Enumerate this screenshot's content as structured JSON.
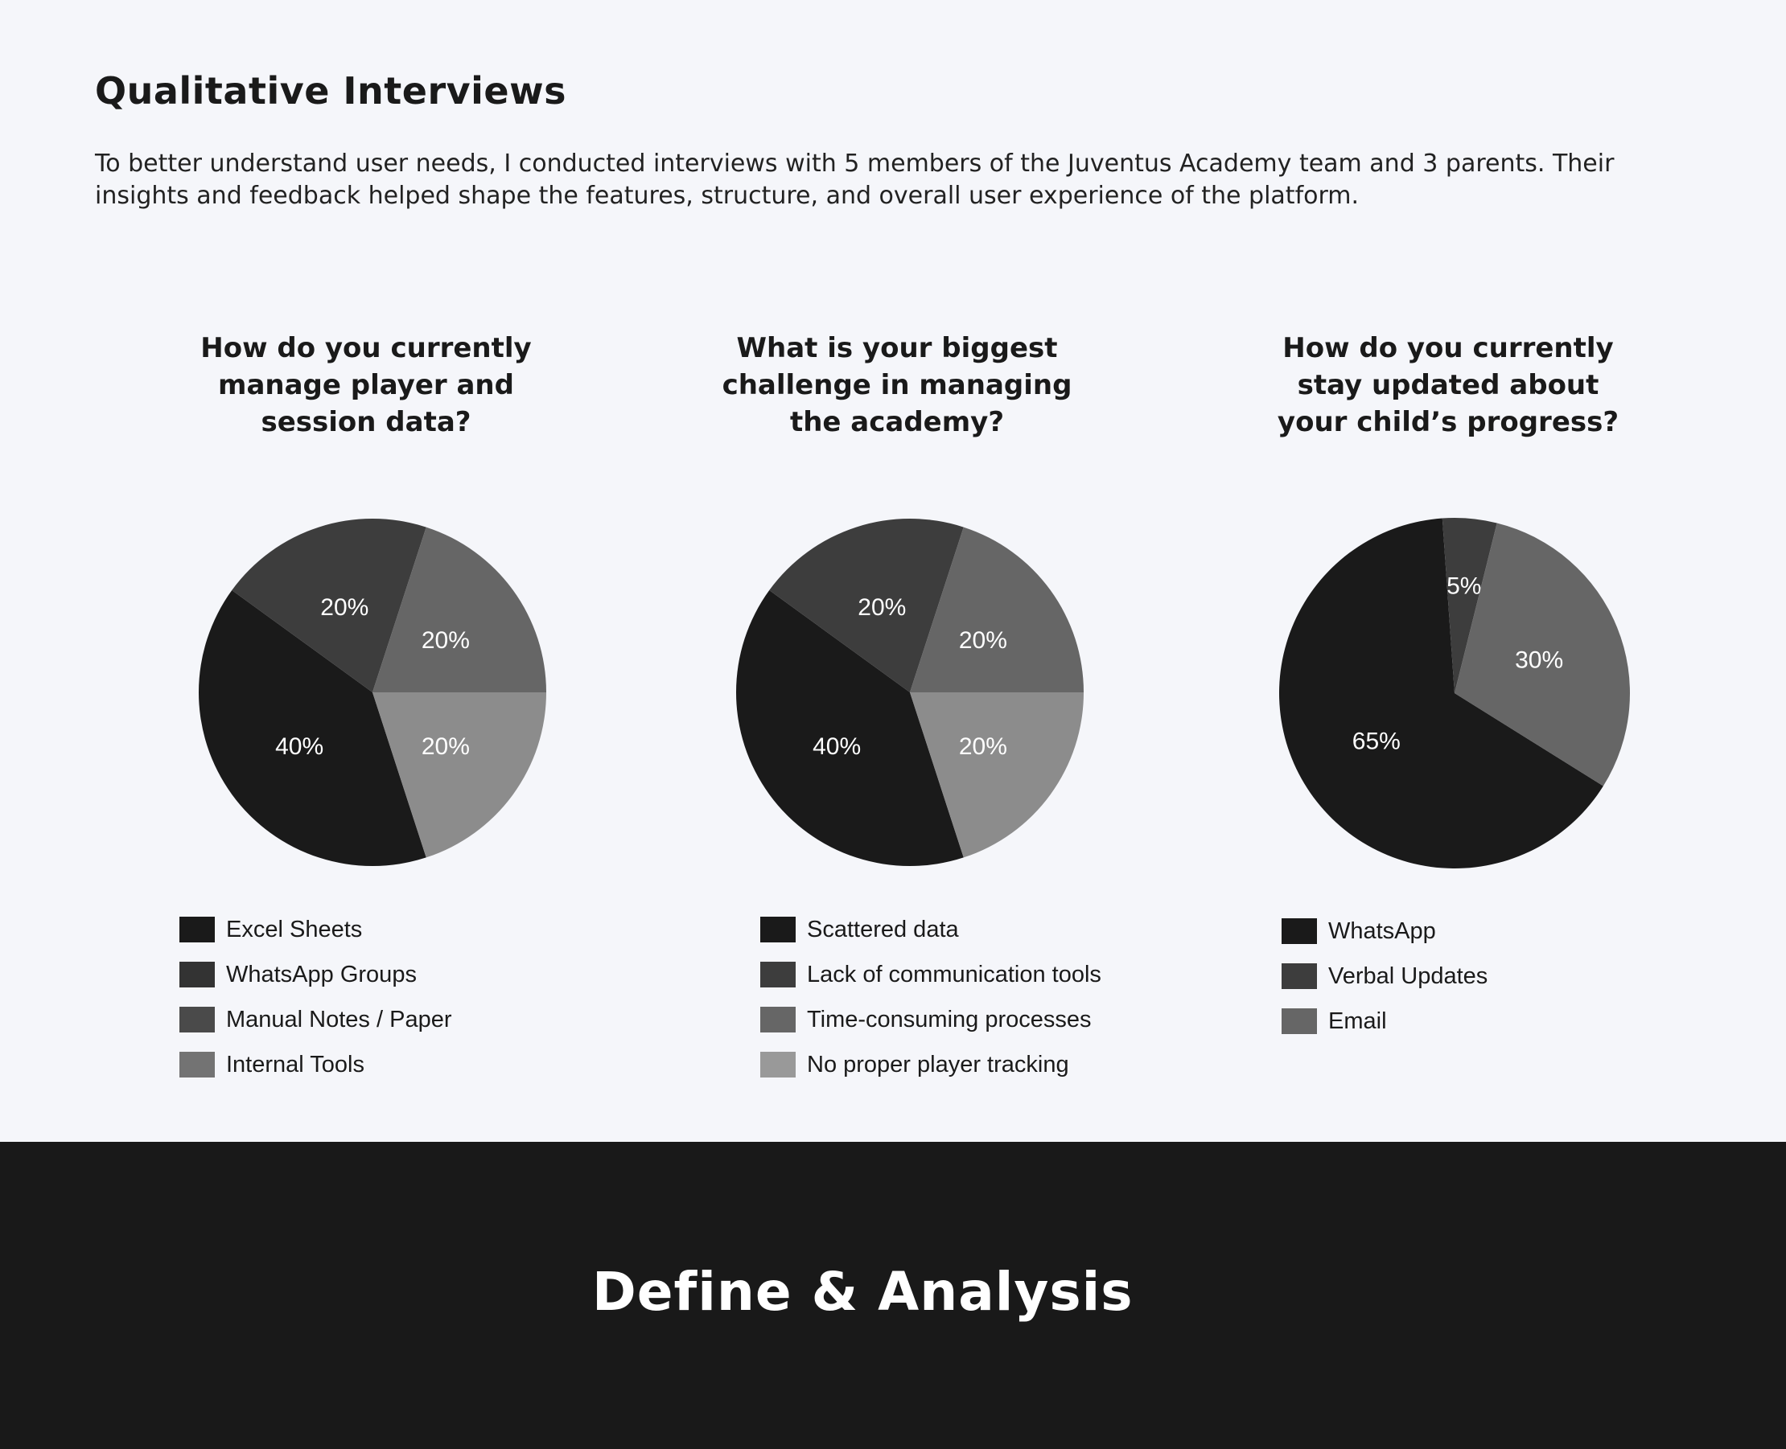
{
  "heading": "Qualitative Interviews",
  "intro": "To better understand user needs, I conducted interviews with 5 members of the Juventus Academy team and 3 parents. Their insights and feedback helped shape the features, structure, and overall user experience of the platform.",
  "footer_title": "Define & Analysis",
  "chart_data": [
    {
      "type": "pie",
      "title": "How do you currently\nmanage player and\nsession data?",
      "slices": [
        {
          "label": "Excel Sheets",
          "value": 40,
          "display": "40%",
          "color": "#1a1a1a"
        },
        {
          "label": "WhatsApp Groups",
          "value": 20,
          "display": "20%",
          "color": "#3d3d3d"
        },
        {
          "label": "Manual Notes / Paper",
          "value": 20,
          "display": "20%",
          "color": "#666666"
        },
        {
          "label": "Internal Tools",
          "value": 20,
          "display": "20%",
          "color": "#8c8c8c"
        }
      ],
      "legend_colors": [
        "#1a1a1a",
        "#333333",
        "#4a4a4a",
        "#737373"
      ]
    },
    {
      "type": "pie",
      "title": "What is your biggest\nchallenge in managing\nthe academy?",
      "slices": [
        {
          "label": "Scattered data",
          "value": 40,
          "display": "40%",
          "color": "#1a1a1a"
        },
        {
          "label": "Lack of communication tools",
          "value": 20,
          "display": "20%",
          "color": "#3d3d3d"
        },
        {
          "label": "Time-consuming processes",
          "value": 20,
          "display": "20%",
          "color": "#666666"
        },
        {
          "label": "No proper player tracking",
          "value": 20,
          "display": "20%",
          "color": "#8c8c8c"
        }
      ],
      "legend_colors": [
        "#1a1a1a",
        "#3d3d3d",
        "#666666",
        "#999999"
      ]
    },
    {
      "type": "pie",
      "title": "How do you currently\nstay updated about\nyour child’s progress?",
      "slices": [
        {
          "label": "WhatsApp",
          "value": 65,
          "display": "65%",
          "color": "#1a1a1a"
        },
        {
          "label": "Verbal Updates",
          "value": 5,
          "display": "5%",
          "color": "#3d3d3d"
        },
        {
          "label": "Email",
          "value": 30,
          "display": "30%",
          "color": "#666666"
        }
      ],
      "legend_colors": [
        "#1a1a1a",
        "#3d3d3d",
        "#666666"
      ]
    }
  ]
}
